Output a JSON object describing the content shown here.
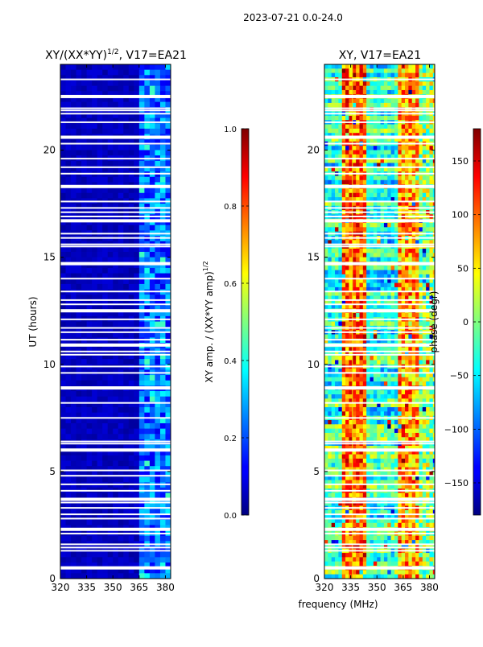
{
  "figure": {
    "suptitle": "2023-07-21 0.0-24.0"
  },
  "chart_data": [
    {
      "type": "heatmap",
      "title_main": "XY/(XX*YY)",
      "title_exp": "1/2",
      "title_suffix": ", V17=EA21",
      "xlabel": "",
      "ylabel": "UT (hours)",
      "xlim": [
        320,
        383
      ],
      "ylim": [
        0,
        24
      ],
      "xticks": [
        "320",
        "335",
        "350",
        "365",
        "380"
      ],
      "yticks": [
        "0",
        "5",
        "10",
        "15",
        "20"
      ],
      "colorbar": {
        "label_main": "XY amp. / (XX*YY amp)",
        "label_exp": "1/2",
        "range": [
          0.0,
          1.0
        ],
        "ticks": [
          "0.0",
          "0.2",
          "0.4",
          "0.6",
          "0.8",
          "1.0"
        ]
      }
    },
    {
      "type": "heatmap",
      "title": "XY, V17=EA21",
      "xlabel": "frequency (MHz)",
      "ylabel": "",
      "xlim": [
        320,
        383
      ],
      "ylim": [
        0,
        24
      ],
      "xticks": [
        "320",
        "335",
        "350",
        "365",
        "380"
      ],
      "yticks": [
        "0",
        "5",
        "10",
        "15",
        "20"
      ],
      "colorbar": {
        "label": "phase (degr)",
        "range": [
          -180,
          180
        ],
        "ticks": [
          "−150",
          "−100",
          "−50",
          "0",
          "50",
          "100",
          "150"
        ]
      }
    }
  ],
  "flagged_rows_hours": [
    0.5,
    1.3,
    1.45,
    1.6,
    2.1,
    2.3,
    2.8,
    3.0,
    3.3,
    3.55,
    3.7,
    4.1,
    4.4,
    4.8,
    5.05,
    6.0,
    6.3,
    6.4,
    7.5,
    8.2,
    8.9,
    9.6,
    9.9,
    10.45,
    10.6,
    10.9,
    11.15,
    11.5,
    11.7,
    12.1,
    12.5,
    12.8,
    13.0,
    13.4,
    14.0,
    14.7,
    15.5,
    15.6,
    15.9,
    16.1,
    16.7,
    16.9,
    17.1,
    17.3,
    17.6,
    18.3,
    18.9,
    19.2,
    19.6,
    20.3,
    20.6,
    21.3,
    21.7,
    21.85,
    21.95,
    22.5,
    23.3
  ]
}
